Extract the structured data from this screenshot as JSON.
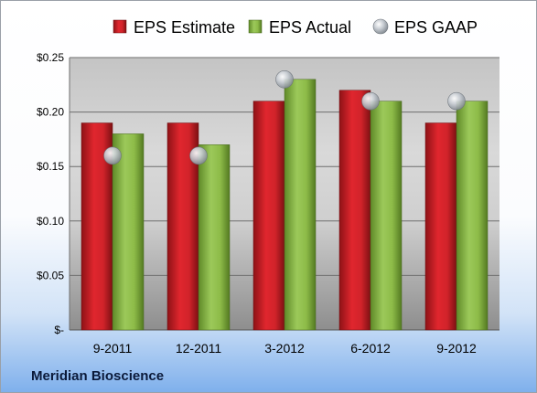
{
  "company": "Meridian Bioscience",
  "colors": {
    "estimate": "#d9232b",
    "actual": "#8dbb48",
    "gaap": "#bfc5cc"
  },
  "chart_data": {
    "type": "bar",
    "categories": [
      "9-2011",
      "12-2011",
      "3-2012",
      "6-2012",
      "9-2012"
    ],
    "series": [
      {
        "name": "EPS Estimate",
        "values": [
          0.19,
          0.19,
          0.21,
          0.22,
          0.19
        ],
        "kind": "bar"
      },
      {
        "name": "EPS Actual",
        "values": [
          0.18,
          0.17,
          0.23,
          0.21,
          0.21
        ],
        "kind": "bar"
      },
      {
        "name": "EPS GAAP",
        "values": [
          0.16,
          0.16,
          0.23,
          0.21,
          0.21
        ],
        "kind": "marker"
      }
    ],
    "yticks": [
      "$-",
      "$0.05",
      "$0.10",
      "$0.15",
      "$0.20",
      "$0.25"
    ],
    "ylim": [
      0,
      0.25
    ],
    "grid": true,
    "legend": "top"
  }
}
